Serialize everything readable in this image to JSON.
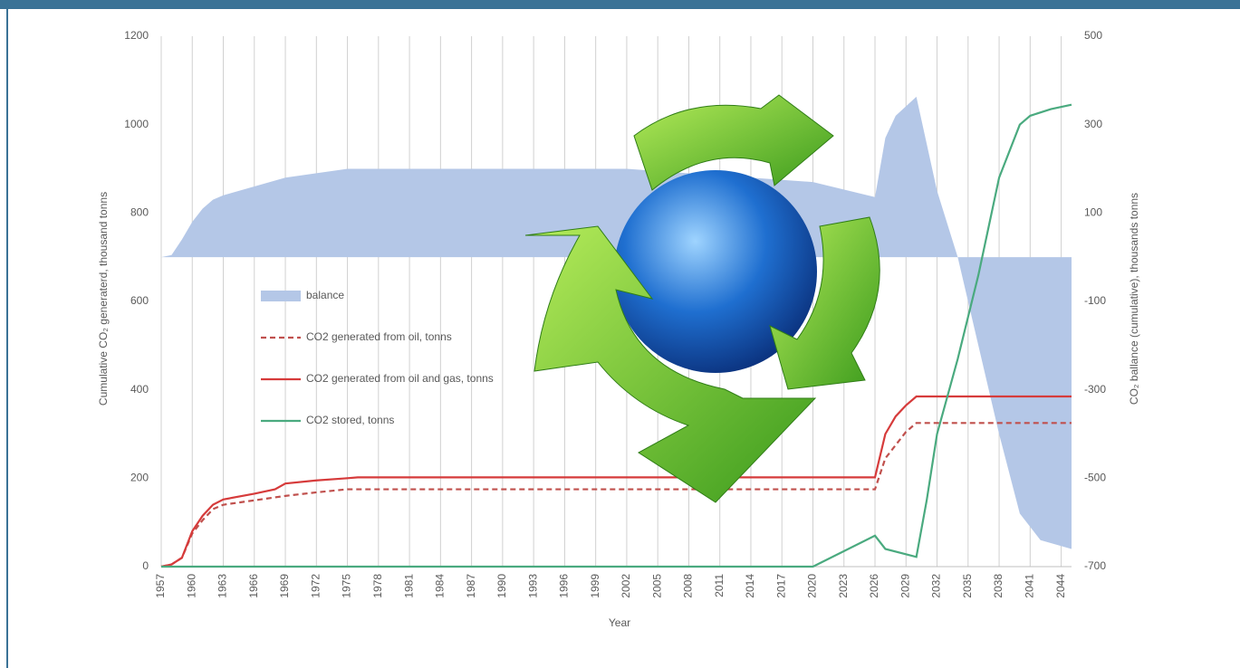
{
  "chart_data": {
    "type": "line",
    "xlabel": "Year",
    "ylabel": "Cumulative CO₂ generaterd, thousand tonns",
    "y2label": "CO₂ ballance (cumulative), thousands tonns",
    "xlim": [
      1957,
      2045
    ],
    "xticks": [
      1957,
      1960,
      1963,
      1966,
      1969,
      1972,
      1975,
      1978,
      1981,
      1984,
      1987,
      1990,
      1993,
      1996,
      1999,
      2002,
      2005,
      2008,
      2011,
      2014,
      2017,
      2020,
      2023,
      2026,
      2029,
      2032,
      2035,
      2038,
      2041,
      2044
    ],
    "ylim": [
      0,
      1200
    ],
    "yticks": [
      0,
      200,
      400,
      600,
      800,
      1000,
      1200
    ],
    "y2lim": [
      -700,
      500
    ],
    "y2ticks": [
      -700,
      -500,
      -300,
      -100,
      100,
      300,
      500
    ],
    "grid": "x",
    "series": [
      {
        "name": "balance",
        "color": "#b4c7e7",
        "kind": "area",
        "axis": "y2",
        "x": [
          1957,
          1958,
          1959,
          1960,
          1961,
          1962,
          1963,
          1966,
          1969,
          1972,
          1975,
          2002,
          2020,
          2026,
          2027,
          2028,
          2030,
          2032,
          2034,
          2036,
          2038,
          2040,
          2042,
          2045
        ],
        "values": [
          0,
          5,
          40,
          80,
          110,
          130,
          140,
          160,
          180,
          190,
          200,
          200,
          170,
          136,
          270,
          320,
          363,
          150,
          0,
          -200,
          -400,
          -580,
          -640,
          -660
        ]
      },
      {
        "name": "CO2 generated from oil, tonns",
        "color": "#c0504d",
        "kind": "dashed",
        "x": [
          1957,
          1958,
          1959,
          1960,
          1961,
          1962,
          1963,
          1966,
          1969,
          1972,
          1975,
          2026,
          2027,
          2028,
          2029,
          2030,
          2045
        ],
        "values": [
          0,
          5,
          20,
          75,
          105,
          130,
          140,
          150,
          160,
          168,
          175,
          175,
          245,
          275,
          305,
          325,
          325
        ]
      },
      {
        "name": "CO2 generated from oil and gas, tonns",
        "color": "#d63b3b",
        "kind": "solid",
        "x": [
          1957,
          1958,
          1959,
          1960,
          1961,
          1962,
          1963,
          1966,
          1968,
          1969,
          1972,
          1975,
          1976,
          2026,
          2027,
          2028,
          2029,
          2030,
          2045
        ],
        "values": [
          0,
          5,
          20,
          80,
          115,
          140,
          152,
          165,
          175,
          188,
          195,
          200,
          202,
          202,
          300,
          340,
          365,
          385,
          385
        ]
      },
      {
        "name": "CO2 stored, tonns",
        "color": "#4aaa7f",
        "kind": "solid",
        "x": [
          1957,
          2020,
          2026,
          2027,
          2030,
          2031,
          2032,
          2034,
          2036,
          2038,
          2040,
          2041,
          2043,
          2045
        ],
        "values": [
          0,
          0,
          70,
          40,
          22,
          150,
          300,
          470,
          660,
          880,
          1000,
          1020,
          1035,
          1045
        ]
      }
    ]
  }
}
